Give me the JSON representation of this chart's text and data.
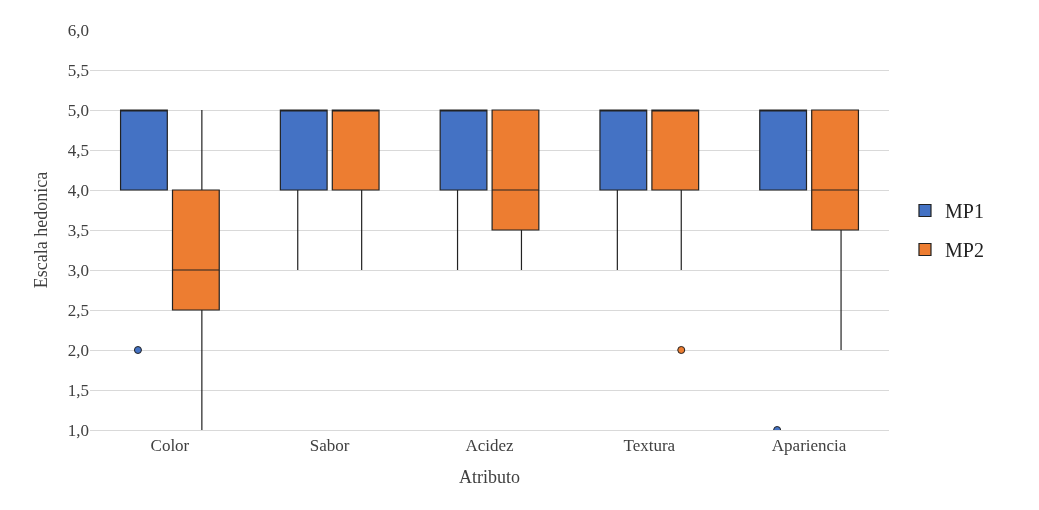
{
  "chart_data": {
    "type": "box",
    "xlabel": "Atributo",
    "ylabel": "Escala hedonica",
    "categories": [
      "Color",
      "Sabor",
      "Acidez",
      "Textura",
      "Apariencia"
    ],
    "series": [
      {
        "name": "MP1",
        "color": "#4472c4",
        "boxes": [
          {
            "low": 4,
            "q1": 4,
            "median": 5,
            "q3": 5,
            "high": 5,
            "outliers": [
              2
            ]
          },
          {
            "low": 3,
            "q1": 4,
            "median": 5,
            "q3": 5,
            "high": 5
          },
          {
            "low": 3,
            "q1": 4,
            "median": 5,
            "q3": 5,
            "high": 5
          },
          {
            "low": 3,
            "q1": 4,
            "median": 5,
            "q3": 5,
            "high": 5
          },
          {
            "low": 4,
            "q1": 4,
            "median": 5,
            "q3": 5,
            "high": 5,
            "outliers": [
              1
            ]
          }
        ]
      },
      {
        "name": "MP2",
        "color": "#ed7d31",
        "boxes": [
          {
            "low": 1,
            "q1": 2.5,
            "median": 3,
            "q3": 4,
            "high": 5
          },
          {
            "low": 3,
            "q1": 4,
            "median": 5,
            "q3": 5,
            "high": 5
          },
          {
            "low": 3,
            "q1": 3.5,
            "median": 4,
            "q3": 5,
            "high": 5
          },
          {
            "low": 3,
            "q1": 4,
            "median": 5,
            "q3": 5,
            "high": 5,
            "outliers": [
              2
            ]
          },
          {
            "low": 2,
            "q1": 3.5,
            "median": 4,
            "q3": 5,
            "high": 5
          }
        ]
      }
    ],
    "ylim": [
      1,
      6
    ],
    "yticks": [
      {
        "value": 1,
        "label": "1,0"
      },
      {
        "value": 1.5,
        "label": "1,5"
      },
      {
        "value": 2,
        "label": "2,0"
      },
      {
        "value": 2.5,
        "label": "2,5"
      },
      {
        "value": 3,
        "label": "3,0"
      },
      {
        "value": 3.5,
        "label": "3,5"
      },
      {
        "value": 4,
        "label": "4,0"
      },
      {
        "value": 4.5,
        "label": "4,5"
      },
      {
        "value": 5,
        "label": "5,0"
      },
      {
        "value": 5.5,
        "label": "5,5"
      },
      {
        "value": 6,
        "label": "6,0"
      }
    ],
    "grid": "y",
    "legend": "right"
  }
}
